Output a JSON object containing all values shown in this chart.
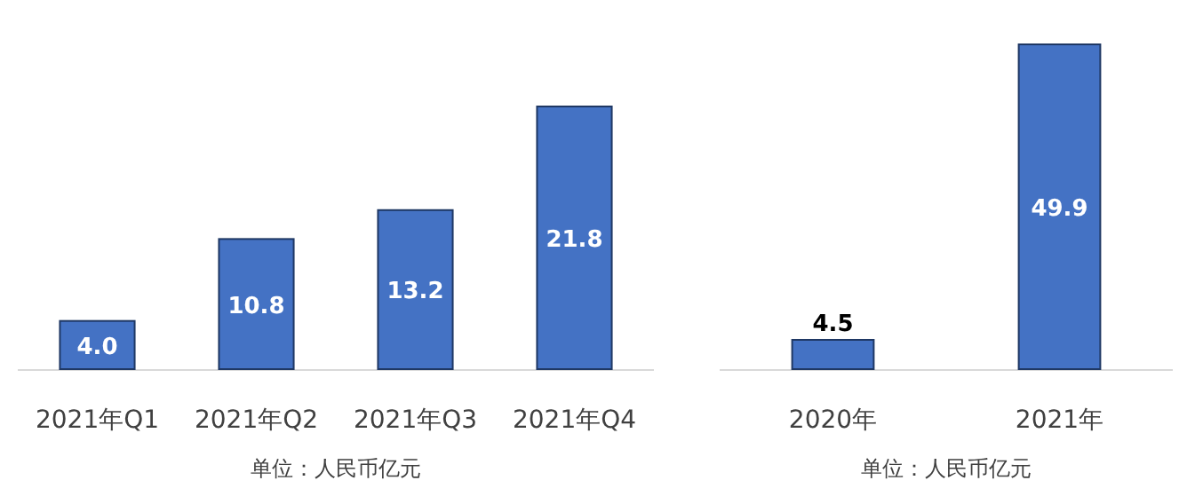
{
  "chart_data": [
    {
      "type": "bar",
      "categories": [
        "2021年Q1",
        "2021年Q2",
        "2021年Q3",
        "2021年Q4"
      ],
      "values": [
        4.0,
        10.8,
        13.2,
        21.8
      ],
      "value_labels": [
        "4.0",
        "10.8",
        "13.2",
        "21.8"
      ],
      "color": "#4472c4",
      "xlabel": "单位：人民币亿元"
    },
    {
      "type": "bar",
      "categories": [
        "2020年",
        "2021年"
      ],
      "values": [
        4.5,
        49.9
      ],
      "value_labels": [
        "4.5",
        "49.9"
      ],
      "color": "#4472c4",
      "xlabel": "单位：人民币亿元"
    }
  ]
}
